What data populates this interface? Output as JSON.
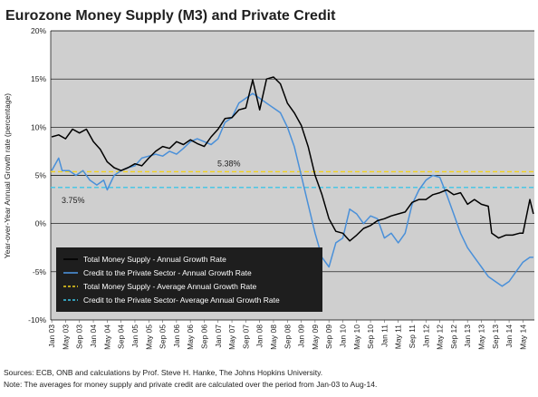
{
  "chart_data": {
    "type": "line",
    "title": "Eurozone Money Supply (M3) and Private Credit",
    "ylabel": "Year-over-Year Annual Growth rate (percentage)",
    "xlabel": "",
    "ylim": [
      -10,
      20
    ],
    "y_ticks": [
      "-10%",
      "-5%",
      "0%",
      "5%",
      "10%",
      "15%",
      "20%"
    ],
    "y_tick_values": [
      -10,
      -5,
      0,
      5,
      10,
      15,
      20
    ],
    "x_range": [
      "2003-01",
      "2014-08"
    ],
    "x_tick_labels": [
      "Jan 03",
      "May 03",
      "Sep 03",
      "Jan 04",
      "May 04",
      "Sep 04",
      "Jan 05",
      "May 05",
      "Sep 05",
      "Jan 06",
      "May 06",
      "Sep 06",
      "Jan 07",
      "May 07",
      "Sep 07",
      "Jan 08",
      "May 08",
      "Sep 08",
      "Jan 09",
      "May 09",
      "Sep 09",
      "Jan 10",
      "May 10",
      "Sep 10",
      "Jan 11",
      "May 11",
      "Sep 11",
      "Jan 12",
      "May 12",
      "Sep 12",
      "Jan 13",
      "May 13",
      "Sep 13",
      "Jan 14",
      "May 14"
    ],
    "grid": true,
    "legend_position": "bottom-left",
    "series": [
      {
        "name": "Total Money Supply - Annual Growth Rate",
        "color": "#000000",
        "style": "solid",
        "points": [
          [
            "2003-01",
            9.0
          ],
          [
            "2003-03",
            9.2
          ],
          [
            "2003-05",
            8.8
          ],
          [
            "2003-07",
            9.8
          ],
          [
            "2003-09",
            9.4
          ],
          [
            "2003-11",
            9.8
          ],
          [
            "2004-01",
            8.5
          ],
          [
            "2004-03",
            7.7
          ],
          [
            "2004-05",
            6.4
          ],
          [
            "2004-07",
            5.8
          ],
          [
            "2004-09",
            5.5
          ],
          [
            "2004-11",
            5.8
          ],
          [
            "2005-01",
            6.2
          ],
          [
            "2005-03",
            6.0
          ],
          [
            "2005-05",
            6.8
          ],
          [
            "2005-07",
            7.5
          ],
          [
            "2005-09",
            8.0
          ],
          [
            "2005-11",
            7.8
          ],
          [
            "2006-01",
            8.5
          ],
          [
            "2006-03",
            8.2
          ],
          [
            "2006-05",
            8.7
          ],
          [
            "2006-07",
            8.3
          ],
          [
            "2006-09",
            8.0
          ],
          [
            "2006-11",
            9.0
          ],
          [
            "2007-01",
            9.8
          ],
          [
            "2007-03",
            10.9
          ],
          [
            "2007-05",
            11.0
          ],
          [
            "2007-07",
            11.8
          ],
          [
            "2007-09",
            12.0
          ],
          [
            "2007-11",
            14.9
          ],
          [
            "2008-01",
            11.8
          ],
          [
            "2008-03",
            15.0
          ],
          [
            "2008-05",
            15.2
          ],
          [
            "2008-07",
            14.5
          ],
          [
            "2008-09",
            12.5
          ],
          [
            "2008-11",
            11.5
          ],
          [
            "2009-01",
            10.2
          ],
          [
            "2009-03",
            8.0
          ],
          [
            "2009-05",
            5.0
          ],
          [
            "2009-07",
            3.0
          ],
          [
            "2009-09",
            0.5
          ],
          [
            "2009-11",
            -0.8
          ],
          [
            "2010-01",
            -1.0
          ],
          [
            "2010-03",
            -1.8
          ],
          [
            "2010-05",
            -1.2
          ],
          [
            "2010-07",
            -0.5
          ],
          [
            "2010-09",
            -0.2
          ],
          [
            "2010-11",
            0.3
          ],
          [
            "2011-01",
            0.5
          ],
          [
            "2011-03",
            0.8
          ],
          [
            "2011-05",
            1.0
          ],
          [
            "2011-07",
            1.2
          ],
          [
            "2011-09",
            2.2
          ],
          [
            "2011-11",
            2.5
          ],
          [
            "2012-01",
            2.5
          ],
          [
            "2012-03",
            3.0
          ],
          [
            "2012-05",
            3.2
          ],
          [
            "2012-07",
            3.5
          ],
          [
            "2012-09",
            3.0
          ],
          [
            "2012-11",
            3.2
          ],
          [
            "2013-01",
            2.0
          ],
          [
            "2013-03",
            2.5
          ],
          [
            "2013-05",
            2.0
          ],
          [
            "2013-07",
            1.8
          ],
          [
            "2013-08",
            -1.0
          ],
          [
            "2013-10",
            -1.5
          ],
          [
            "2013-12",
            -1.2
          ],
          [
            "2014-02",
            -1.2
          ],
          [
            "2014-04",
            -1.0
          ],
          [
            "2014-05",
            -1.0
          ],
          [
            "2014-07",
            2.5
          ],
          [
            "2014-08",
            1.0
          ]
        ]
      },
      {
        "name": "Credit to the Private Sector - Annual Growth Rate",
        "color": "#4a90d9",
        "style": "solid",
        "points": [
          [
            "2003-01",
            5.5
          ],
          [
            "2003-03",
            6.8
          ],
          [
            "2003-04",
            5.5
          ],
          [
            "2003-06",
            5.5
          ],
          [
            "2003-08",
            5.0
          ],
          [
            "2003-10",
            5.5
          ],
          [
            "2003-12",
            4.5
          ],
          [
            "2004-02",
            4.0
          ],
          [
            "2004-04",
            4.5
          ],
          [
            "2004-05",
            3.5
          ],
          [
            "2004-07",
            5.0
          ],
          [
            "2004-09",
            5.5
          ],
          [
            "2004-11",
            5.8
          ],
          [
            "2005-01",
            6.0
          ],
          [
            "2005-03",
            6.8
          ],
          [
            "2005-05",
            7.0
          ],
          [
            "2005-07",
            7.2
          ],
          [
            "2005-09",
            7.0
          ],
          [
            "2005-11",
            7.5
          ],
          [
            "2006-01",
            7.2
          ],
          [
            "2006-03",
            7.8
          ],
          [
            "2006-05",
            8.5
          ],
          [
            "2006-07",
            8.8
          ],
          [
            "2006-09",
            8.5
          ],
          [
            "2006-11",
            8.2
          ],
          [
            "2007-01",
            8.8
          ],
          [
            "2007-03",
            10.5
          ],
          [
            "2007-05",
            11.0
          ],
          [
            "2007-07",
            12.5
          ],
          [
            "2007-09",
            13.0
          ],
          [
            "2007-11",
            13.5
          ],
          [
            "2008-01",
            13.0
          ],
          [
            "2008-03",
            12.5
          ],
          [
            "2008-05",
            12.0
          ],
          [
            "2008-07",
            11.5
          ],
          [
            "2008-09",
            10.0
          ],
          [
            "2008-11",
            8.0
          ],
          [
            "2009-01",
            5.0
          ],
          [
            "2009-03",
            2.0
          ],
          [
            "2009-05",
            -1.0
          ],
          [
            "2009-07",
            -3.5
          ],
          [
            "2009-09",
            -4.5
          ],
          [
            "2009-11",
            -2.0
          ],
          [
            "2010-01",
            -1.5
          ],
          [
            "2010-03",
            1.5
          ],
          [
            "2010-05",
            1.0
          ],
          [
            "2010-07",
            0.0
          ],
          [
            "2010-09",
            0.8
          ],
          [
            "2010-11",
            0.5
          ],
          [
            "2011-01",
            -1.5
          ],
          [
            "2011-03",
            -1.0
          ],
          [
            "2011-05",
            -2.0
          ],
          [
            "2011-07",
            -1.0
          ],
          [
            "2011-09",
            2.0
          ],
          [
            "2011-11",
            3.5
          ],
          [
            "2012-01",
            4.5
          ],
          [
            "2012-03",
            5.0
          ],
          [
            "2012-05",
            4.8
          ],
          [
            "2012-07",
            3.0
          ],
          [
            "2012-09",
            1.0
          ],
          [
            "2012-11",
            -1.0
          ],
          [
            "2013-01",
            -2.5
          ],
          [
            "2013-03",
            -3.5
          ],
          [
            "2013-05",
            -4.5
          ],
          [
            "2013-07",
            -5.5
          ],
          [
            "2013-09",
            -6.0
          ],
          [
            "2013-11",
            -6.5
          ],
          [
            "2014-01",
            -6.0
          ],
          [
            "2014-03",
            -5.0
          ],
          [
            "2014-05",
            -4.0
          ],
          [
            "2014-07",
            -3.5
          ],
          [
            "2014-08",
            -3.5
          ]
        ]
      },
      {
        "name": "Total Money Supply - Average Annual Growth Rate",
        "color": "#f2d21b",
        "style": "dashed",
        "constant": 5.38,
        "label": "5.38%"
      },
      {
        "name": "Credit to the Private Sector- Average Annual Growth Rate",
        "color": "#3cc6e8",
        "style": "dashed",
        "constant": 3.75,
        "label": "3.75%"
      }
    ],
    "footer": [
      "Sources: ECB, ONB and calculations by Prof. Steve H. Hanke, The Johns Hopkins University.",
      "Note: The averages for money supply and private credit are calculated over the period from Jan-03 to Aug-14."
    ],
    "colors": {
      "plot_background": "#cfcfcf",
      "legend_background": "#1e1e1e",
      "gridline": "#000000"
    }
  }
}
